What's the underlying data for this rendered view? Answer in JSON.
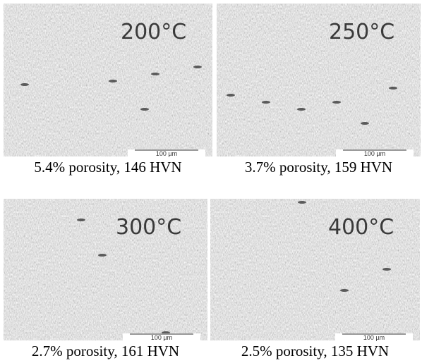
{
  "panels": [
    {
      "temperature": "200°C",
      "scale_bar": "100 µm",
      "caption": "5.4% porosity, 146 HVN"
    },
    {
      "temperature": "250°C",
      "scale_bar": "100 µm",
      "caption": "3.7% porosity, 159 HVN"
    },
    {
      "temperature": "300°C",
      "scale_bar": "100 µm",
      "caption": "2.7% porosity, 161 HVN"
    },
    {
      "temperature": "400°C",
      "scale_bar": "100 µm",
      "caption": "2.5% porosity, 135 HVN"
    }
  ]
}
